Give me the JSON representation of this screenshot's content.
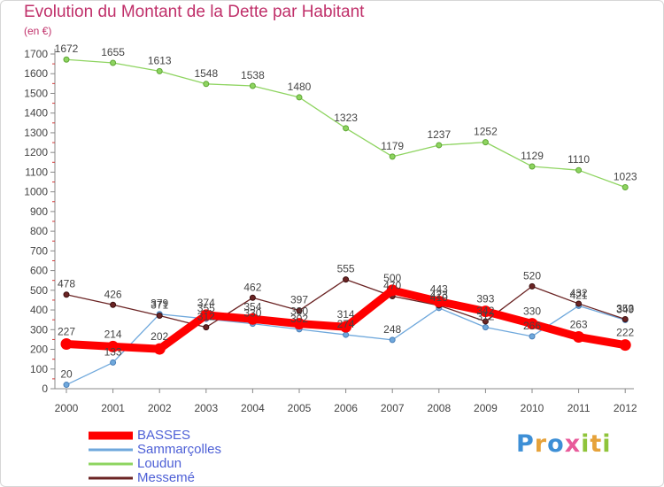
{
  "title": "Evolution du Montant de la Dette par Habitant",
  "unit": "(en €)",
  "logo": {
    "text": "Proxiti",
    "letters": [
      {
        "ch": "P",
        "color": "#3d8fd6"
      },
      {
        "ch": "r",
        "color": "#e6a23a"
      },
      {
        "ch": "o",
        "color": "#3d8fd6"
      },
      {
        "ch": "x",
        "color": "#e85a9a"
      },
      {
        "ch": "i",
        "color": "#8fc43a"
      },
      {
        "ch": "t",
        "color": "#e6a23a"
      },
      {
        "ch": "i",
        "color": "#8fc43a"
      }
    ]
  },
  "chart_data": {
    "type": "line",
    "title": "Evolution du Montant de la Dette par Habitant",
    "ylabel": "(en €)",
    "xlabel": "",
    "categories": [
      "2000",
      "2001",
      "2002",
      "2003",
      "2004",
      "2005",
      "2006",
      "2007",
      "2008",
      "2009",
      "2010",
      "2011",
      "2012"
    ],
    "ylim": [
      0,
      1700
    ],
    "yticks": [
      0,
      100,
      200,
      300,
      400,
      500,
      600,
      700,
      800,
      900,
      1000,
      1100,
      1200,
      1300,
      1400,
      1500,
      1600,
      1700
    ],
    "grid": false,
    "legend_position": "bottom-left",
    "series": [
      {
        "name": "BASSES",
        "color": "#ff0000",
        "values": [
          227,
          214,
          202,
          374,
          354,
          330,
          314,
          500,
          443,
          393,
          330,
          263,
          222
        ]
      },
      {
        "name": "Sammarçolles",
        "color": "#6fa8dc",
        "values": [
          20,
          133,
          379,
          355,
          330,
          302,
          274,
          248,
          410,
          312,
          266,
          421,
          349
        ]
      },
      {
        "name": "Loudun",
        "color": "#8ed460",
        "values": [
          1672,
          1655,
          1613,
          1548,
          1538,
          1480,
          1323,
          1179,
          1237,
          1252,
          1129,
          1110,
          1023
        ]
      },
      {
        "name": "Messemé",
        "color": "#6b2424",
        "values": [
          478,
          426,
          371,
          312,
          462,
          397,
          555,
          470,
          423,
          342,
          520,
          432,
          353
        ]
      }
    ],
    "data_labels": [
      [
        "227",
        "214",
        "202",
        "374",
        "354",
        "330",
        "314",
        "500",
        "443",
        "393",
        "330",
        "263",
        "222"
      ],
      [
        "20",
        "133",
        "379",
        "355",
        "330",
        "302",
        "274",
        "248",
        "410",
        "312",
        "266",
        "421",
        "349"
      ],
      [
        "1672",
        "1655",
        "1613",
        "1548",
        "1538",
        "1480",
        "1323",
        "1179",
        "1237",
        "1252",
        "1129",
        "1110",
        "1023"
      ],
      [
        "478",
        "426",
        "371",
        "312",
        "462",
        "397",
        "555",
        "470",
        "423",
        "342",
        "520",
        "432",
        "353"
      ]
    ]
  }
}
